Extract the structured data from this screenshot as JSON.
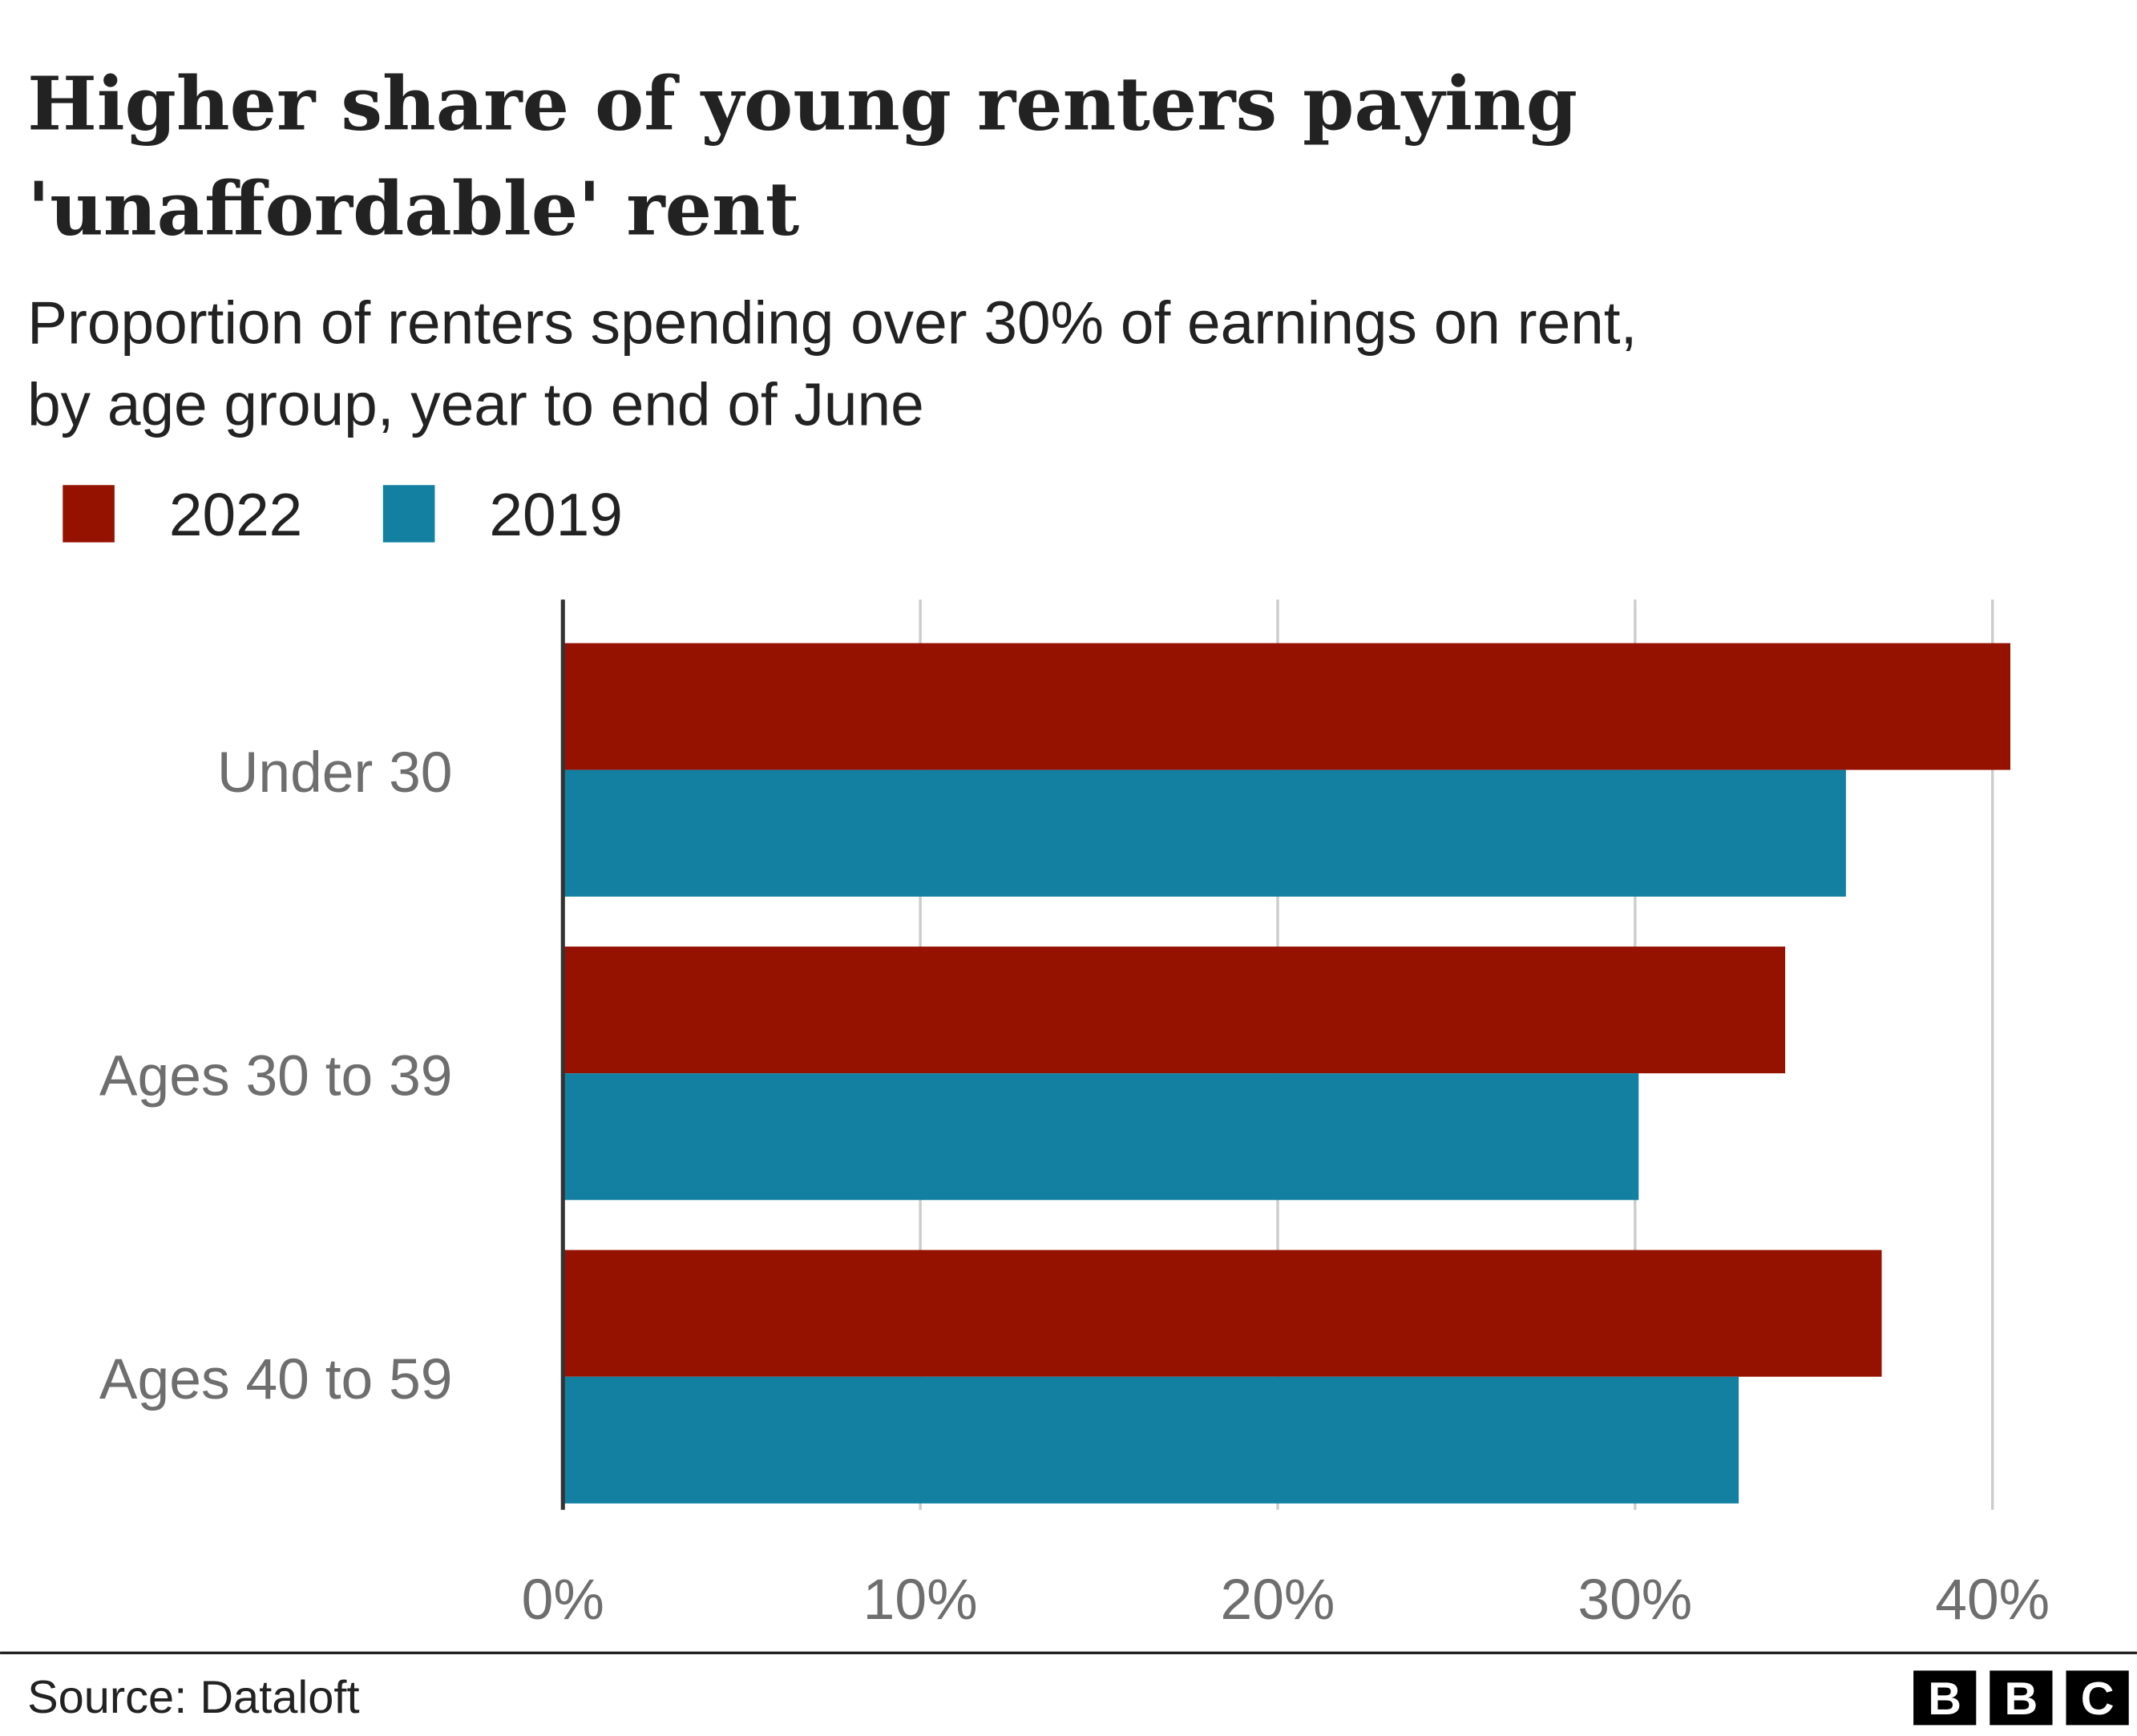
{
  "chart_data": {
    "type": "hbar",
    "title_lines": [
      "Higher share of young renters paying",
      "'unaffordable' rent"
    ],
    "subtitle_lines": [
      "Proportion of renters spending over 30% of earnings on rent,",
      "by age group, year to end of June"
    ],
    "categories": [
      "Under 30",
      "Ages 30 to 39",
      "Ages 40 to 59"
    ],
    "series": [
      {
        "name": "2022",
        "color": "#961200",
        "values": [
          40.5,
          34.2,
          36.9
        ]
      },
      {
        "name": "2019",
        "color": "#1380a1",
        "values": [
          35.9,
          30.1,
          32.9
        ]
      }
    ],
    "xlim": [
      0,
      40
    ],
    "xticks": [
      {
        "value": 0,
        "label": "0%"
      },
      {
        "value": 10,
        "label": "10%"
      },
      {
        "value": 20,
        "label": "20%"
      },
      {
        "value": 30,
        "label": "30%"
      },
      {
        "value": 40,
        "label": "40%"
      }
    ],
    "grid": true,
    "source": "Source: Dataloft",
    "logo": [
      "B",
      "B",
      "C"
    ]
  }
}
